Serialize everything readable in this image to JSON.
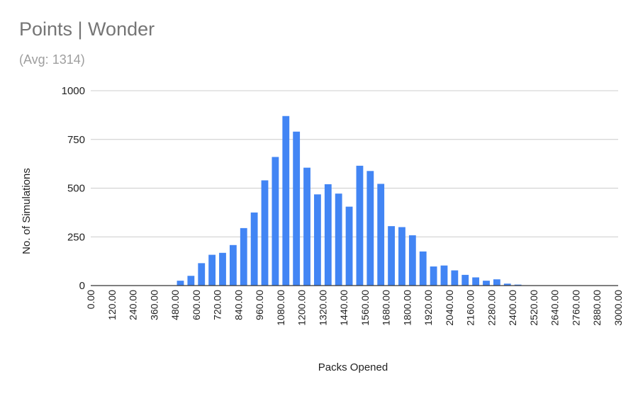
{
  "chart_data": {
    "type": "bar",
    "title": "Points | Wonder",
    "subtitle": "(Avg: 1314)",
    "xlabel": "Packs Opened",
    "ylabel": "No. of Simulations",
    "ylim": [
      0,
      1000
    ],
    "yticks": [
      "0",
      "250",
      "500",
      "750",
      "1000"
    ],
    "xlim": [
      0,
      3000
    ],
    "bin_width": 60,
    "xtick_labels": [
      "0.00",
      "120.00",
      "240.00",
      "360.00",
      "480.00",
      "600.00",
      "720.00",
      "840.00",
      "960.00",
      "1080.00",
      "1200.00",
      "1320.00",
      "1440.00",
      "1560.00",
      "1680.00",
      "1800.00",
      "1920.00",
      "2040.00",
      "2160.00",
      "2280.00",
      "2400.00",
      "2520.00",
      "2640.00",
      "2760.00",
      "2880.00",
      "3000.00"
    ],
    "bins": [
      0,
      60,
      120,
      180,
      240,
      300,
      360,
      420,
      480,
      540,
      600,
      660,
      720,
      780,
      840,
      900,
      960,
      1020,
      1080,
      1140,
      1200,
      1260,
      1320,
      1380,
      1440,
      1500,
      1560,
      1620,
      1680,
      1740,
      1800,
      1860,
      1920,
      1980,
      2040,
      2100,
      2160,
      2220,
      2280,
      2340,
      2400,
      2460,
      2520,
      2580,
      2640,
      2700,
      2760,
      2820,
      2880,
      2940
    ],
    "values": [
      0,
      0,
      0,
      0,
      0,
      0,
      0,
      0,
      25,
      50,
      115,
      158,
      168,
      208,
      295,
      375,
      540,
      660,
      870,
      790,
      605,
      468,
      520,
      472,
      405,
      615,
      588,
      522,
      305,
      300,
      258,
      175,
      98,
      103,
      78,
      55,
      42,
      25,
      32,
      10,
      5,
      0,
      0,
      0,
      0,
      0,
      0,
      0,
      0,
      0
    ],
    "grid": true,
    "legend": "none",
    "colors": {
      "bar": "#4285f4",
      "grid": "#cccccc",
      "axis": "#333333"
    }
  }
}
